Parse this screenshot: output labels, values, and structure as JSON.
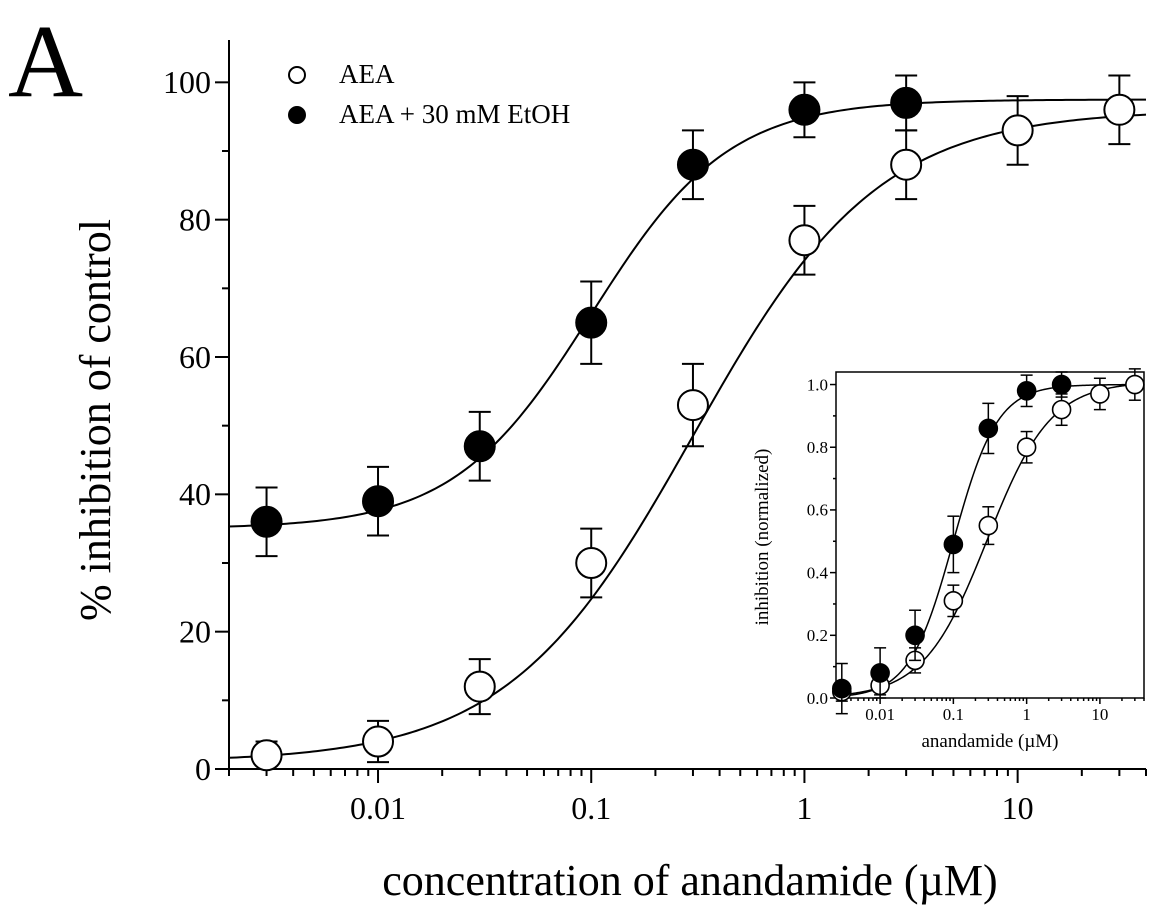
{
  "panel_label": "A",
  "chart_data": [
    {
      "type": "scatter",
      "title": "",
      "xlabel": "concentration of anandamide (µM)",
      "ylabel": "% inhibition of control",
      "xscale": "log",
      "xlim": [
        0.002,
        40
      ],
      "ylim": [
        0,
        105
      ],
      "xticks": [
        0.01,
        0.1,
        1,
        10
      ],
      "xtick_labels": [
        "0.01",
        "0.1",
        "1",
        "10"
      ],
      "yticks": [
        0,
        20,
        40,
        60,
        80,
        100
      ],
      "ytick_labels": [
        "0",
        "20",
        "40",
        "60",
        "80",
        "100"
      ],
      "grid": false,
      "legend_position": "top-left",
      "series": [
        {
          "name": "AEA",
          "marker": "open-circle",
          "x": [
            0.003,
            0.01,
            0.03,
            0.1,
            0.3,
            1,
            3,
            10,
            30
          ],
          "y": [
            2,
            4,
            12,
            30,
            53,
            77,
            88,
            93,
            96
          ],
          "yerr": [
            2,
            3,
            4,
            5,
            6,
            5,
            5,
            5,
            5
          ],
          "fit": {
            "bottom": 1,
            "top": 96,
            "ec50": 0.3,
            "hill": 1
          }
        },
        {
          "name": "AEA + 30 mM EtOH",
          "marker": "filled-circle",
          "x": [
            0.003,
            0.01,
            0.03,
            0.1,
            0.3,
            1,
            3
          ],
          "y": [
            36,
            39,
            47,
            65,
            88,
            96,
            97
          ],
          "yerr": [
            5,
            5,
            5,
            6,
            5,
            4,
            4
          ],
          "fit": {
            "bottom": 35,
            "top": 97.5,
            "ec50": 0.1,
            "hill": 1.35
          }
        }
      ]
    },
    {
      "type": "scatter",
      "title": "",
      "xlabel": "anandamide (µM)",
      "ylabel": "inhibition (normalized)",
      "xscale": "log",
      "xlim": [
        0.0025,
        40
      ],
      "ylim": [
        0,
        1.04
      ],
      "xticks": [
        0.01,
        0.1,
        1,
        10
      ],
      "xtick_labels": [
        "0.01",
        "0.1",
        "1",
        "10"
      ],
      "yticks": [
        0,
        0.2,
        0.4,
        0.6,
        0.8,
        1.0
      ],
      "ytick_labels": [
        "0.0",
        "0.2",
        "0.4",
        "0.6",
        "0.8",
        "1.0"
      ],
      "grid": false,
      "series": [
        {
          "marker": "open-circle",
          "x": [
            0.003,
            0.01,
            0.03,
            0.1,
            0.3,
            1,
            3,
            10,
            30
          ],
          "y": [
            0.02,
            0.04,
            0.12,
            0.31,
            0.55,
            0.8,
            0.92,
            0.97,
            1.0
          ],
          "yerr": [
            0.03,
            0.03,
            0.04,
            0.05,
            0.06,
            0.05,
            0.05,
            0.05,
            0.05
          ],
          "fit": {
            "bottom": 0,
            "top": 1.01,
            "ec50": 0.29,
            "hill": 1
          }
        },
        {
          "marker": "filled-circle",
          "x": [
            0.003,
            0.01,
            0.03,
            0.1,
            0.3,
            1,
            3
          ],
          "y": [
            0.03,
            0.08,
            0.2,
            0.49,
            0.86,
            0.98,
            1.0
          ],
          "yerr": [
            0.08,
            0.08,
            0.08,
            0.09,
            0.08,
            0.05,
            0.04
          ],
          "fit": {
            "bottom": 0,
            "top": 1.0,
            "ec50": 0.1,
            "hill": 1.45
          }
        }
      ]
    }
  ]
}
